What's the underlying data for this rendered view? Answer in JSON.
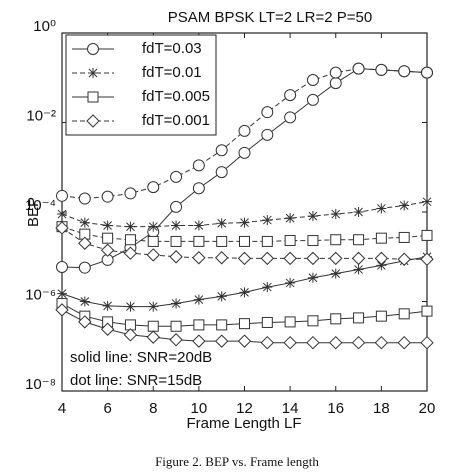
{
  "chart_data": {
    "type": "line",
    "title": "PSAM BPSK LT=2 LR=2 P=50",
    "x_label": "Frame Length LF",
    "y_label": "BEP",
    "caption": "Figure 2. BEP vs. Frame length",
    "annotations": [
      "solid line: SNR=20dB",
      "dot line: SNR=15dB"
    ],
    "x": [
      4,
      5,
      6,
      7,
      8,
      9,
      10,
      11,
      12,
      13,
      14,
      15,
      16,
      17,
      18,
      19,
      20
    ],
    "xlim": [
      4,
      20
    ],
    "xticks": [
      4,
      6,
      8,
      10,
      12,
      14,
      16,
      18,
      20
    ],
    "ylim": [
      1e-08,
      1
    ],
    "log_y": true,
    "yticks": [
      {
        "value": 1,
        "label": "10⁰"
      },
      {
        "value": 0.01,
        "label": "10⁻²"
      },
      {
        "value": 0.0001,
        "label": "10⁻⁴"
      },
      {
        "value": 1e-06,
        "label": "10⁻⁶"
      },
      {
        "value": 1e-08,
        "label": "10⁻⁸"
      }
    ],
    "grid": false,
    "legend": "upper left",
    "color": "#333333",
    "series": [
      {
        "name": "fdT=0.03",
        "marker": "circle",
        "solid": [
          5.9e-06,
          5.7e-06,
          8.5e-06,
          1.6e-05,
          3.6e-05,
          0.00013,
          0.00034,
          0.00078,
          0.0021,
          0.0053,
          0.013,
          0.032,
          0.076,
          0.16,
          0.15,
          0.14,
          0.13
        ],
        "dashed": [
          0.00023,
          0.0002,
          0.00022,
          0.00026,
          0.00036,
          0.00061,
          0.0011,
          0.0024,
          0.0065,
          0.017,
          0.041,
          0.089,
          0.13,
          0.16,
          0.15,
          0.14,
          0.13
        ]
      },
      {
        "name": "fdT=0.01",
        "marker": "star",
        "solid": [
          1.5e-06,
          1e-06,
          8e-07,
          7.7e-07,
          7.7e-07,
          9e-07,
          1.1e-06,
          1.3e-06,
          1.6e-06,
          2.1e-06,
          2.6e-06,
          3.4e-06,
          4.2e-06,
          5.2e-06,
          6.4e-06,
          8.1e-06,
          1e-05
        ],
        "dashed": [
          9e-05,
          5.8e-05,
          5e-05,
          4.7e-05,
          4.7e-05,
          5e-05,
          5e-05,
          5.6e-05,
          5.8e-05,
          6.6e-05,
          7.3e-05,
          8.1e-05,
          9e-05,
          0.0001,
          0.00012,
          0.00014,
          0.00017
        ]
      },
      {
        "name": "fdT=0.005",
        "marker": "square",
        "solid": [
          9e-07,
          4.7e-07,
          3.5e-07,
          3e-07,
          2.8e-07,
          2.8e-07,
          3e-07,
          3e-07,
          3.2e-07,
          3.4e-07,
          3.5e-07,
          3.7e-07,
          4.1e-07,
          4.3e-07,
          4.7e-07,
          5.3e-07,
          6.1e-07
        ],
        "dashed": [
          4.7e-05,
          3.2e-05,
          2.6e-05,
          2.4e-05,
          2.2e-05,
          2.2e-05,
          2.2e-05,
          2.2e-05,
          2.2e-05,
          2.2e-05,
          2.3e-05,
          2.3e-05,
          2.4e-05,
          2.4e-05,
          2.6e-05,
          2.7e-05,
          3e-05
        ]
      },
      {
        "name": "fdT=0.001",
        "marker": "diamond",
        "solid": [
          6.5e-07,
          3.5e-07,
          2.4e-07,
          1.8e-07,
          1.6e-07,
          1.4e-07,
          1.3e-07,
          1.3e-07,
          1.3e-07,
          1.2e-07,
          1.2e-07,
          1.2e-07,
          1.2e-07,
          1.2e-07,
          1.2e-07,
          1.2e-07,
          1.2e-07
        ],
        "dashed": [
          4.4e-05,
          2e-05,
          1.4e-05,
          1.2e-05,
          1.1e-05,
          1e-05,
          9.5e-06,
          9.5e-06,
          9.2e-06,
          9.2e-06,
          9.2e-06,
          9.2e-06,
          9.2e-06,
          9.2e-06,
          9.2e-06,
          8.8e-06,
          8.8e-06
        ]
      }
    ]
  }
}
